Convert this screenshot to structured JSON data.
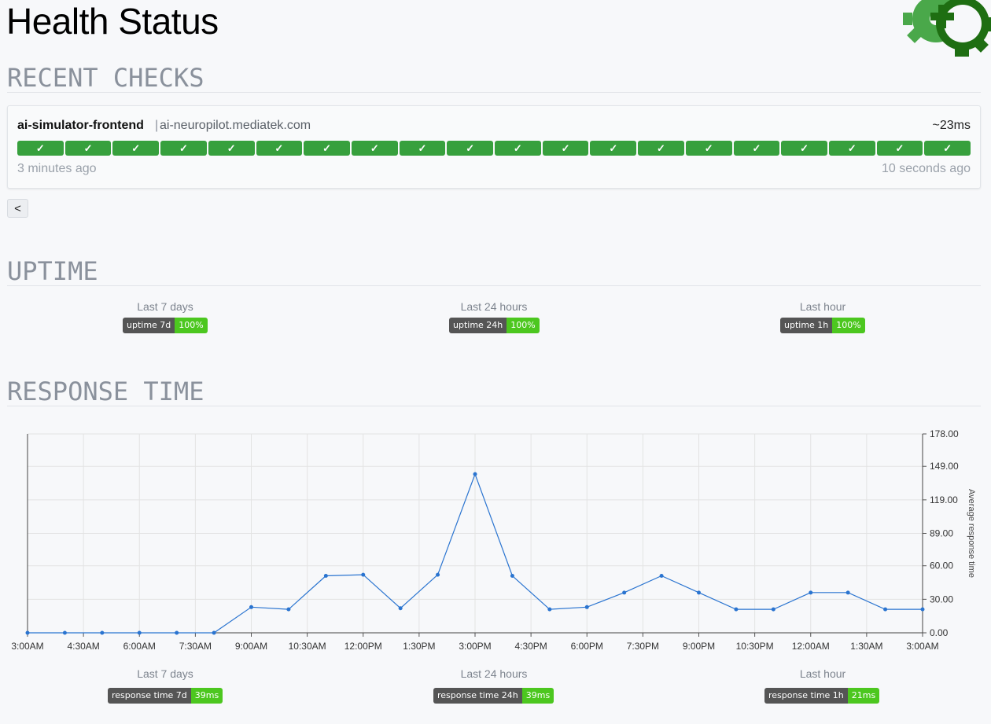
{
  "page": {
    "title": "Health Status"
  },
  "sections": {
    "recent_checks": "RECENT CHECKS",
    "uptime": "UPTIME",
    "response_time": "RESPONSE TIME"
  },
  "service": {
    "name": "ai-simulator-frontend",
    "separator": "|",
    "host": "ai-neuropilot.mediatek.com",
    "latency": "~23ms",
    "check_mark": "✓",
    "check_count": 20,
    "oldest": "3 minutes ago",
    "newest": "10 seconds ago"
  },
  "pager": {
    "prev_label": "<"
  },
  "uptime": {
    "items": [
      {
        "caption": "Last 7 days",
        "label": "uptime 7d",
        "value": "100%"
      },
      {
        "caption": "Last 24 hours",
        "label": "uptime 24h",
        "value": "100%"
      },
      {
        "caption": "Last hour",
        "label": "uptime 1h",
        "value": "100%"
      }
    ]
  },
  "response": {
    "items": [
      {
        "caption": "Last 7 days",
        "label": "response time 7d",
        "value": "39ms"
      },
      {
        "caption": "Last 24 hours",
        "label": "response time 24h",
        "value": "39ms"
      },
      {
        "caption": "Last hour",
        "label": "response time 1h",
        "value": "21ms"
      }
    ]
  },
  "colors": {
    "ok": "#37a03d",
    "badge_value": "#4cc71f",
    "badge_label": "#555555",
    "line": "#2a74d0"
  },
  "icons": {
    "logo": "gear-plus-icon"
  },
  "chart_data": {
    "type": "line",
    "ylabel": "Average response time",
    "ylim": [
      0,
      178
    ],
    "yticks": [
      "0.00",
      "30.00",
      "60.00",
      "89.00",
      "119.00",
      "149.00",
      "178.00"
    ],
    "ytick_values": [
      0,
      30,
      60,
      89,
      119,
      149,
      178
    ],
    "xticks": [
      "3:00AM",
      "4:30AM",
      "6:00AM",
      "7:30AM",
      "9:00AM",
      "10:30AM",
      "12:00PM",
      "1:30PM",
      "3:00PM",
      "4:30PM",
      "6:00PM",
      "7:30PM",
      "9:00PM",
      "10:30PM",
      "12:00AM",
      "1:30AM",
      "3:00AM"
    ],
    "x_hours": [
      0,
      1,
      2,
      3,
      4,
      5,
      6,
      7,
      8,
      9,
      10,
      11,
      12,
      13,
      14,
      15,
      16,
      17,
      18,
      19,
      20,
      21,
      22,
      23,
      24
    ],
    "values": [
      0,
      0,
      0,
      0,
      0,
      0,
      23,
      21,
      51,
      52,
      22,
      52,
      142,
      51,
      21,
      23,
      36,
      51,
      36,
      21,
      21,
      36,
      36,
      21,
      21
    ],
    "grid": true,
    "legend": "none"
  }
}
